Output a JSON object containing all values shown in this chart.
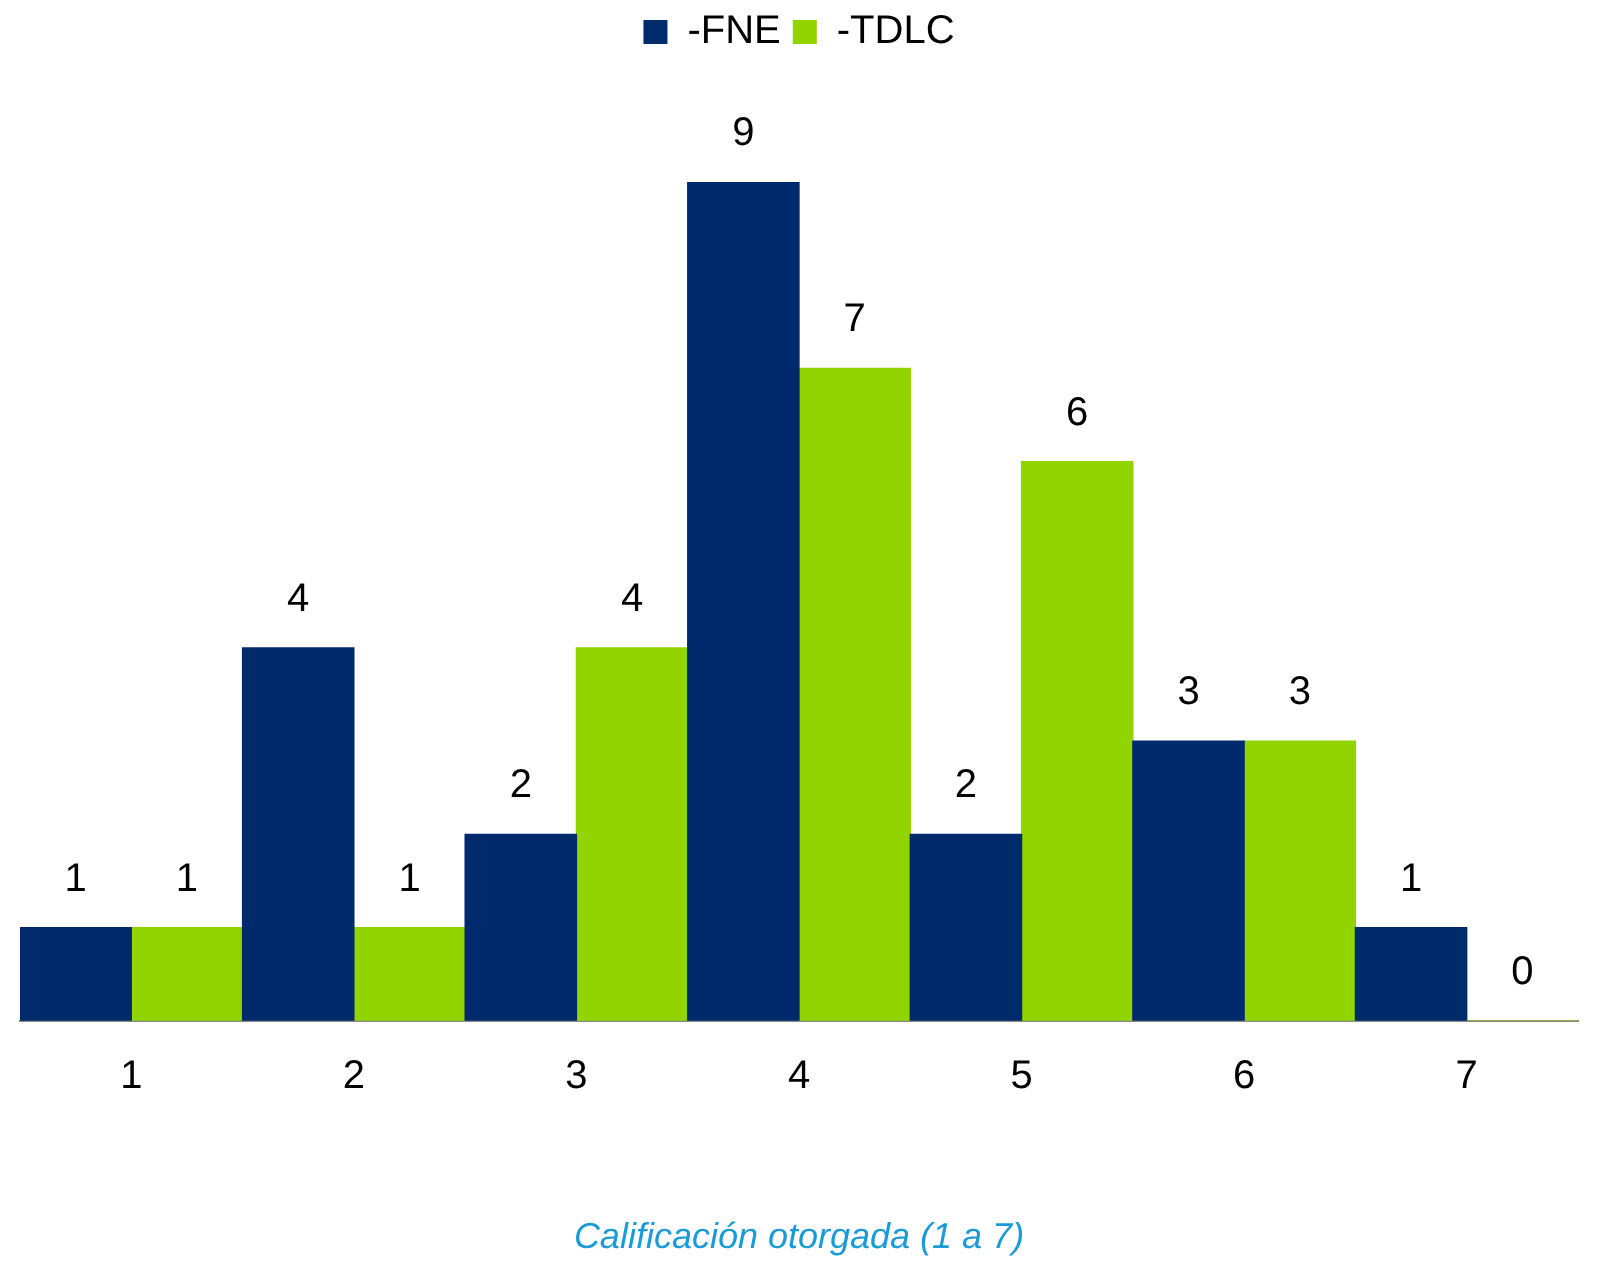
{
  "chart_data": {
    "type": "bar",
    "xlabel": "Calificación otorgada (1 a 7)",
    "categories": [
      "1",
      "2",
      "3",
      "4",
      "5",
      "6",
      "7"
    ],
    "series": [
      {
        "name": "-FNE",
        "color": "#002a6c",
        "values": [
          1,
          4,
          2,
          9,
          2,
          3,
          1
        ]
      },
      {
        "name": "-TDLC",
        "color": "#92d400",
        "values": [
          1,
          1,
          4,
          7,
          6,
          3,
          0
        ]
      }
    ],
    "data_labels": true,
    "grid": false,
    "legend": "top"
  }
}
